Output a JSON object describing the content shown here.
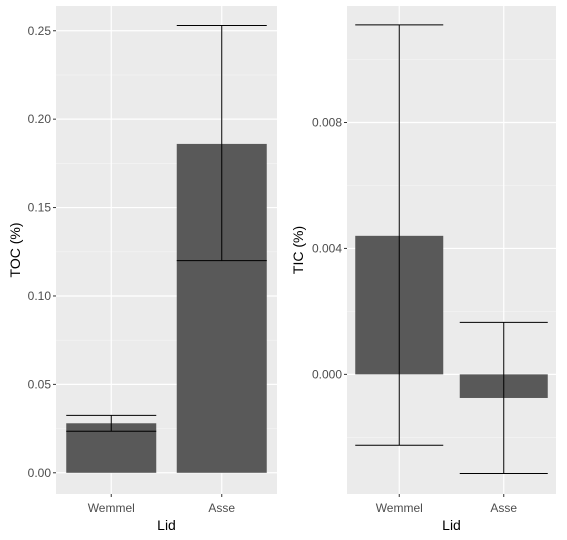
{
  "colors": {
    "panel_bg": "#ebebeb",
    "grid_major": "#ffffff",
    "grid_minor": "#f5f5f5",
    "bar_fill": "#595959",
    "errorbar": "#000000",
    "tick_text": "#4d4d4d",
    "tick_mark": "#333333"
  },
  "chart_data": [
    {
      "type": "bar",
      "xlabel": "Lid",
      "ylabel": "TOC (%)",
      "categories": [
        "Wemmel",
        "Asse"
      ],
      "values": [
        0.028,
        0.186
      ],
      "error_lower": [
        0.0235,
        0.12
      ],
      "error_upper": [
        0.0325,
        0.253
      ],
      "ylim": [
        -0.012,
        0.264
      ],
      "yticks": [
        0.0,
        0.05,
        0.1,
        0.15,
        0.2,
        0.25
      ],
      "ytick_labels": [
        "0.00",
        "0.05",
        "0.10",
        "0.15",
        "0.20",
        "0.25"
      ],
      "grid": true,
      "legend": "none"
    },
    {
      "type": "bar",
      "xlabel": "Lid",
      "ylabel": "TIC (%)",
      "categories": [
        "Wemmel",
        "Asse"
      ],
      "values": [
        0.0044,
        -0.00075
      ],
      "error_lower": [
        -0.00225,
        -0.00315
      ],
      "error_upper": [
        0.0111,
        0.00165
      ],
      "ylim": [
        -0.0038,
        0.0117
      ],
      "yticks": [
        0.0,
        0.004,
        0.008
      ],
      "ytick_labels": [
        "0.000",
        "0.004",
        "0.008"
      ],
      "grid": true,
      "legend": "none"
    }
  ]
}
